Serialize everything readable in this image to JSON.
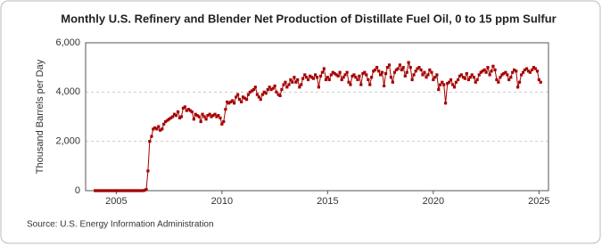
{
  "chart_data": {
    "type": "line",
    "title": "Monthly U.S. Refinery and Blender Net Production of Distillate Fuel Oil, 0 to 15 ppm Sulfur",
    "y_label": "Thousand Barrels per Day",
    "source": "Source: U.S. Energy Information Administration",
    "xlim": [
      2003.55,
      2025.45
    ],
    "xticks": [
      2005,
      2010,
      2015,
      2020,
      2025
    ],
    "ylim": [
      0,
      6000
    ],
    "yticks": [
      0,
      {
        "value": 2000,
        "label": "2,000"
      },
      {
        "value": 4000,
        "label": "4,000"
      },
      {
        "value": 6000,
        "label": "6,000"
      }
    ],
    "grid": true,
    "series": [
      {
        "color": "#a50000",
        "x": [
          2004,
          2004.08,
          2004.17,
          2004.25,
          2004.33,
          2004.42,
          2004.5,
          2004.58,
          2004.67,
          2004.75,
          2004.83,
          2004.92,
          2005,
          2005.08,
          2005.17,
          2005.25,
          2005.33,
          2005.42,
          2005.5,
          2005.58,
          2005.67,
          2005.75,
          2005.83,
          2005.92,
          2006,
          2006.08,
          2006.17,
          2006.25,
          2006.33,
          2006.42,
          2006.5,
          2006.58,
          2006.67,
          2006.75,
          2006.83,
          2006.92,
          2007,
          2007.08,
          2007.17,
          2007.25,
          2007.33,
          2007.42,
          2007.5,
          2007.58,
          2007.67,
          2007.75,
          2007.83,
          2007.92,
          2008,
          2008.08,
          2008.17,
          2008.25,
          2008.33,
          2008.42,
          2008.5,
          2008.58,
          2008.67,
          2008.75,
          2008.83,
          2008.92,
          2009,
          2009.08,
          2009.17,
          2009.25,
          2009.33,
          2009.42,
          2009.5,
          2009.58,
          2009.67,
          2009.75,
          2009.83,
          2009.92,
          2010,
          2010.08,
          2010.17,
          2010.25,
          2010.33,
          2010.42,
          2010.5,
          2010.58,
          2010.67,
          2010.75,
          2010.83,
          2010.92,
          2011,
          2011.08,
          2011.17,
          2011.25,
          2011.33,
          2011.42,
          2011.5,
          2011.58,
          2011.67,
          2011.75,
          2011.83,
          2011.92,
          2012,
          2012.08,
          2012.17,
          2012.25,
          2012.33,
          2012.42,
          2012.5,
          2012.58,
          2012.67,
          2012.75,
          2012.83,
          2012.92,
          2013,
          2013.08,
          2013.17,
          2013.25,
          2013.33,
          2013.42,
          2013.5,
          2013.58,
          2013.67,
          2013.75,
          2013.83,
          2013.92,
          2014,
          2014.08,
          2014.17,
          2014.25,
          2014.33,
          2014.42,
          2014.5,
          2014.58,
          2014.67,
          2014.75,
          2014.83,
          2014.92,
          2015,
          2015.08,
          2015.17,
          2015.25,
          2015.33,
          2015.42,
          2015.5,
          2015.58,
          2015.67,
          2015.75,
          2015.83,
          2015.92,
          2016,
          2016.08,
          2016.17,
          2016.25,
          2016.33,
          2016.42,
          2016.5,
          2016.58,
          2016.67,
          2016.75,
          2016.83,
          2016.92,
          2017,
          2017.08,
          2017.17,
          2017.25,
          2017.33,
          2017.42,
          2017.5,
          2017.58,
          2017.67,
          2017.75,
          2017.83,
          2017.92,
          2018,
          2018.08,
          2018.17,
          2018.25,
          2018.33,
          2018.42,
          2018.5,
          2018.58,
          2018.67,
          2018.75,
          2018.83,
          2018.92,
          2019,
          2019.08,
          2019.17,
          2019.25,
          2019.33,
          2019.42,
          2019.5,
          2019.58,
          2019.67,
          2019.75,
          2019.83,
          2019.92,
          2020,
          2020.08,
          2020.17,
          2020.25,
          2020.33,
          2020.42,
          2020.5,
          2020.58,
          2020.67,
          2020.75,
          2020.83,
          2020.92,
          2021,
          2021.08,
          2021.17,
          2021.25,
          2021.33,
          2021.42,
          2021.5,
          2021.58,
          2021.67,
          2021.75,
          2021.83,
          2021.92,
          2022,
          2022.08,
          2022.17,
          2022.25,
          2022.33,
          2022.42,
          2022.5,
          2022.58,
          2022.67,
          2022.75,
          2022.83,
          2022.92,
          2023,
          2023.08,
          2023.17,
          2023.25,
          2023.33,
          2023.42,
          2023.5,
          2023.58,
          2023.67,
          2023.75,
          2023.83,
          2023.92,
          2024,
          2024.08,
          2024.17,
          2024.25,
          2024.33,
          2024.42,
          2024.5,
          2024.58,
          2024.67,
          2024.75,
          2024.83,
          2024.92,
          2025,
          2025.08
        ],
        "values": [
          0,
          0,
          0,
          0,
          0,
          0,
          0,
          0,
          0,
          0,
          0,
          0,
          0,
          0,
          0,
          0,
          0,
          0,
          0,
          0,
          0,
          0,
          0,
          0,
          0,
          0,
          0,
          0,
          10,
          50,
          800,
          2000,
          2200,
          2500,
          2550,
          2500,
          2600,
          2450,
          2500,
          2700,
          2800,
          2850,
          2900,
          2950,
          3000,
          3100,
          3050,
          3200,
          2950,
          3000,
          3350,
          3400,
          3250,
          3300,
          3250,
          3200,
          2900,
          3100,
          3050,
          3000,
          2800,
          3100,
          3000,
          2900,
          3050,
          3100,
          3000,
          3050,
          3100,
          3000,
          3050,
          2950,
          2700,
          2800,
          3300,
          3600,
          3550,
          3600,
          3650,
          3550,
          3800,
          3900,
          3700,
          3600,
          3800,
          3750,
          3700,
          3900,
          4000,
          4050,
          4100,
          4200,
          3900,
          3800,
          3700,
          3900,
          4000,
          3950,
          4100,
          4200,
          4100,
          4150,
          4250,
          4000,
          3900,
          3850,
          4100,
          4300,
          4400,
          4200,
          4300,
          4500,
          4400,
          4600,
          4400,
          4500,
          4200,
          4300,
          4550,
          4700,
          4600,
          4500,
          4650,
          4600,
          4550,
          4700,
          4600,
          4200,
          4650,
          4800,
          4950,
          4500,
          4600,
          4500,
          4700,
          4800,
          4750,
          4700,
          4650,
          4800,
          4500,
          4600,
          4700,
          4800,
          4400,
          4300,
          4650,
          4700,
          4600,
          4500,
          4650,
          4300,
          4750,
          4800,
          4700,
          4500,
          4300,
          4600,
          4850,
          4900,
          5000,
          4850,
          4700,
          4800,
          4250,
          4750,
          5000,
          5100,
          4600,
          4400,
          4800,
          4900,
          4950,
          5100,
          4900,
          5000,
          4650,
          4800,
          5200,
          5000,
          4500,
          4700,
          4850,
          4950,
          5000,
          4900,
          4700,
          4800,
          4600,
          4700,
          4900,
          4800,
          4500,
          4600,
          4700,
          4100,
          4300,
          4400,
          4300,
          3550,
          4350,
          4400,
          4500,
          4300,
          4200,
          4400,
          4500,
          4650,
          4700,
          4600,
          4550,
          4750,
          4500,
          4600,
          4700,
          4600,
          4400,
          4500,
          4700,
          4800,
          4850,
          4900,
          4800,
          5000,
          4700,
          4850,
          5050,
          4900,
          4500,
          4400,
          4600,
          4700,
          4750,
          4800,
          4700,
          4500,
          4600,
          4800,
          4900,
          4850,
          4200,
          4400,
          4700,
          4800,
          4900,
          4950,
          4850,
          4800,
          4900,
          5000,
          4950,
          4850,
          4500,
          4400
        ]
      }
    ]
  }
}
